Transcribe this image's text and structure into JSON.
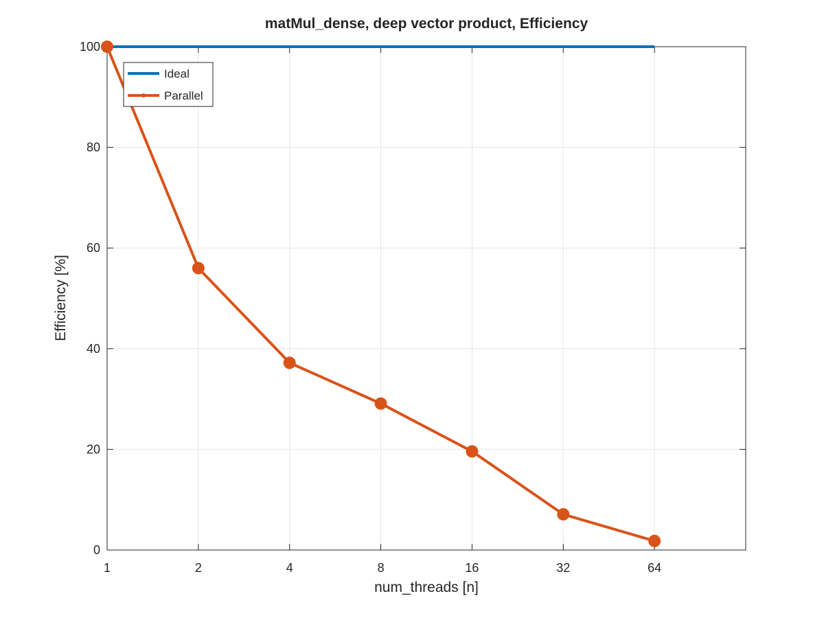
{
  "chart_data": {
    "type": "line",
    "title": "matMul_dense, deep vector product, Efficiency",
    "xlabel": "num_threads [n]",
    "ylabel": "Efficiency [%]",
    "x_scale": "log2",
    "x": [
      1,
      2,
      4,
      8,
      16,
      32,
      64
    ],
    "x_tick_labels": [
      "1",
      "2",
      "4",
      "8",
      "16",
      "32",
      "64"
    ],
    "xlim": [
      1,
      128
    ],
    "ylim": [
      0,
      100
    ],
    "y_ticks": [
      0,
      20,
      40,
      60,
      80,
      100
    ],
    "y_tick_labels": [
      "0",
      "20",
      "40",
      "60",
      "80",
      "100"
    ],
    "grid": true,
    "legend_position": "top-left",
    "series": [
      {
        "name": "Ideal",
        "color": "#0072BD",
        "marker": "none",
        "values": [
          100,
          100,
          100,
          100,
          100,
          100,
          100
        ]
      },
      {
        "name": "Parallel",
        "color": "#D95319",
        "marker": "circle",
        "values": [
          100,
          56,
          37.2,
          29.1,
          19.6,
          7.1,
          1.8
        ]
      }
    ]
  }
}
